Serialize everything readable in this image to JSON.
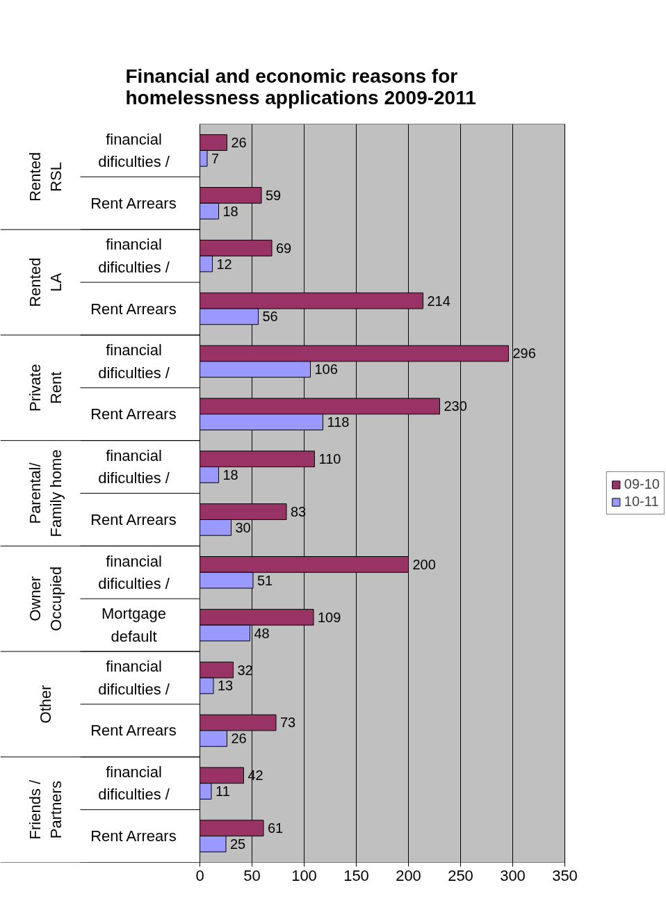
{
  "chart_data": {
    "type": "bar",
    "orientation": "horizontal",
    "title": "Financial and economic reasons for homelessness applications  2009-2011",
    "categories": [
      "financial dificulties /",
      "Rent Arrears",
      "financial dificulties /",
      "Rent Arrears",
      "financial dificulties /",
      "Rent Arrears",
      "financial dificulties /",
      "Rent Arrears",
      "financial dificulties /",
      "Mortgage default",
      "financial dificulties /",
      "Rent Arrears",
      "financial dificulties /",
      "Rent Arrears"
    ],
    "annotations": [
      "Rented RSL",
      "Rented LA",
      "Private Rent",
      "Parental/ Family home",
      "Owner Occupied",
      "Other",
      "Friends / Partners"
    ],
    "series": [
      {
        "name": "09-10",
        "color": "#993366",
        "values": [
          26,
          59,
          69,
          214,
          296,
          230,
          110,
          83,
          200,
          109,
          32,
          73,
          42,
          61
        ]
      },
      {
        "name": "10-11",
        "color": "#9999ff",
        "values": [
          7,
          18,
          12,
          56,
          106,
          118,
          18,
          30,
          51,
          48,
          13,
          26,
          11,
          25
        ]
      }
    ],
    "xlim": [
      0,
      350
    ],
    "xticks": [
      0,
      50,
      100,
      150,
      200,
      250,
      300,
      350
    ],
    "grid": "x",
    "legend": "right",
    "data_labels": true
  }
}
